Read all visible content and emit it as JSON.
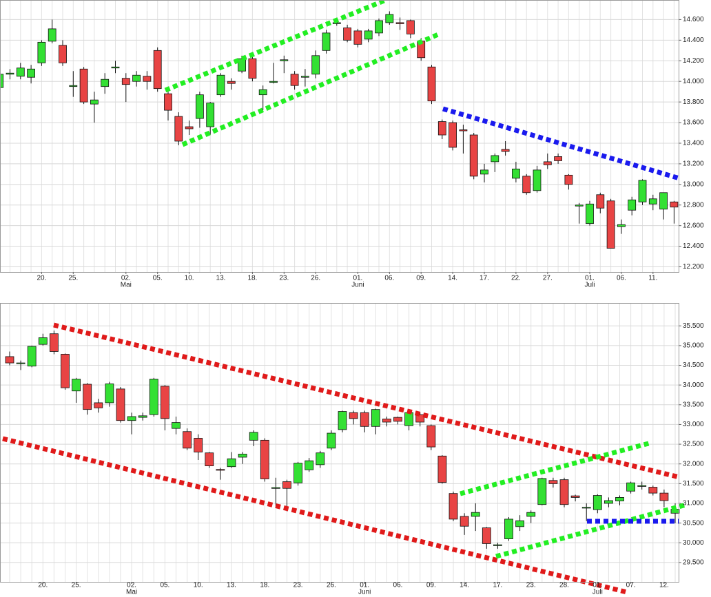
{
  "chart_data": [
    {
      "type": "candlestick",
      "up_color": "#33e033",
      "down_color": "#e84444",
      "grid": true,
      "categories": [
        null,
        null,
        null,
        null,
        "20.",
        null,
        null,
        "25.",
        null,
        null,
        null,
        null,
        "02.",
        null,
        null,
        "05.",
        null,
        null,
        "10.",
        null,
        null,
        "13.",
        null,
        null,
        "18.",
        null,
        null,
        "23.",
        null,
        null,
        "26.",
        null,
        null,
        null,
        "01.",
        null,
        null,
        "06.",
        null,
        null,
        "09.",
        null,
        null,
        "14.",
        null,
        null,
        "17.",
        null,
        null,
        "22.",
        null,
        null,
        "27.",
        null,
        null,
        null,
        "01.",
        null,
        null,
        "06.",
        null,
        null,
        "11.",
        null,
        null
      ],
      "months": [
        null,
        null,
        null,
        null,
        null,
        null,
        null,
        null,
        null,
        null,
        null,
        null,
        "Mai",
        null,
        null,
        null,
        null,
        null,
        null,
        null,
        null,
        null,
        null,
        null,
        null,
        null,
        null,
        null,
        null,
        null,
        null,
        null,
        null,
        null,
        "Juni",
        null,
        null,
        null,
        null,
        null,
        null,
        null,
        null,
        null,
        null,
        null,
        null,
        null,
        null,
        null,
        null,
        null,
        null,
        null,
        null,
        null,
        "Juli",
        null,
        null,
        null,
        null,
        null,
        null,
        null,
        null
      ],
      "open": [
        13.94,
        14.07,
        14.05,
        14.04,
        14.18,
        14.39,
        14.35,
        13.95,
        14.12,
        13.78,
        13.95,
        14.13,
        14.03,
        14.0,
        14.05,
        14.3,
        13.88,
        13.66,
        13.56,
        13.64,
        13.56,
        13.87,
        14.0,
        14.1,
        14.22,
        13.87,
        13.99,
        14.2,
        14.07,
        14.04,
        14.07,
        14.3,
        14.56,
        14.52,
        14.49,
        14.41,
        14.47,
        14.57,
        14.57,
        14.59,
        14.39,
        14.14,
        13.61,
        13.6,
        13.53,
        13.48,
        13.1,
        13.22,
        13.34,
        13.06,
        13.08,
        12.94,
        13.22,
        13.27,
        13.09,
        12.79,
        12.62,
        12.9,
        12.84,
        12.59,
        12.75,
        12.83,
        12.81,
        12.76,
        12.83
      ],
      "high": [
        14.15,
        14.12,
        14.18,
        14.16,
        14.4,
        14.6,
        14.4,
        14.1,
        14.14,
        13.9,
        14.08,
        14.2,
        14.08,
        14.1,
        14.1,
        14.33,
        13.92,
        13.7,
        13.62,
        13.9,
        13.8,
        14.08,
        14.03,
        14.25,
        14.24,
        13.96,
        14.18,
        14.25,
        14.1,
        14.12,
        14.3,
        14.5,
        14.6,
        14.55,
        14.51,
        14.51,
        14.61,
        14.68,
        14.62,
        14.6,
        14.42,
        14.16,
        13.63,
        13.62,
        13.58,
        13.5,
        13.2,
        13.3,
        13.42,
        13.22,
        13.1,
        13.18,
        13.3,
        13.3,
        13.1,
        12.82,
        12.84,
        12.92,
        12.86,
        12.66,
        12.88,
        13.05,
        12.9,
        12.92,
        12.84
      ],
      "low": [
        13.88,
        14.02,
        14.02,
        13.98,
        14.15,
        14.37,
        14.15,
        13.85,
        13.78,
        13.6,
        13.88,
        14.08,
        13.8,
        13.95,
        13.92,
        13.9,
        13.62,
        13.38,
        13.48,
        13.55,
        13.48,
        13.85,
        13.92,
        14.08,
        14.0,
        13.72,
        13.98,
        14.08,
        13.92,
        13.95,
        14.03,
        14.27,
        14.54,
        14.38,
        14.33,
        14.38,
        14.44,
        14.55,
        14.5,
        14.42,
        14.2,
        13.78,
        13.44,
        13.33,
        13.3,
        13.05,
        13.02,
        13.12,
        13.28,
        13.02,
        12.9,
        12.92,
        13.15,
        13.2,
        12.95,
        12.62,
        12.6,
        12.72,
        12.38,
        12.52,
        12.7,
        12.8,
        12.75,
        12.66,
        12.62
      ],
      "close": [
        14.07,
        14.08,
        14.13,
        14.12,
        14.38,
        14.51,
        14.18,
        13.96,
        13.8,
        13.82,
        14.02,
        14.14,
        13.97,
        14.06,
        14.0,
        13.93,
        13.72,
        13.42,
        13.54,
        13.87,
        13.79,
        14.06,
        13.98,
        14.22,
        14.03,
        13.92,
        14.0,
        14.21,
        13.96,
        14.05,
        14.25,
        14.47,
        14.57,
        14.4,
        14.36,
        14.49,
        14.59,
        14.65,
        14.56,
        14.46,
        14.23,
        13.81,
        13.48,
        13.36,
        13.52,
        13.08,
        13.14,
        13.28,
        13.32,
        13.15,
        12.92,
        13.14,
        13.19,
        13.23,
        13.0,
        12.8,
        12.81,
        12.77,
        12.38,
        12.61,
        12.85,
        13.04,
        12.86,
        12.92,
        12.78
      ],
      "ylim": [
        12.15,
        14.79
      ],
      "yticks": [
        {
          "value": 12.2,
          "label": "12.200"
        },
        {
          "value": 12.4,
          "label": "12.400"
        },
        {
          "value": 12.6,
          "label": "12.600"
        },
        {
          "value": 12.8,
          "label": "12.800"
        },
        {
          "value": 13.0,
          "label": "13.000"
        },
        {
          "value": 13.2,
          "label": "13.200"
        },
        {
          "value": 13.4,
          "label": "13.400"
        },
        {
          "value": 13.6,
          "label": "13.600"
        },
        {
          "value": 13.8,
          "label": "13.800"
        },
        {
          "value": 14.0,
          "label": "14.000"
        },
        {
          "value": 14.2,
          "label": "14.200"
        },
        {
          "value": 14.4,
          "label": "14.400"
        },
        {
          "value": 14.6,
          "label": "14.600"
        }
      ]
    },
    {
      "type": "candlestick",
      "up_color": "#33e033",
      "down_color": "#e84444",
      "grid": true,
      "categories": [
        null,
        null,
        null,
        "20.",
        null,
        null,
        "25.",
        null,
        null,
        null,
        null,
        "02.",
        null,
        null,
        "05.",
        null,
        null,
        "10.",
        null,
        null,
        "13.",
        null,
        null,
        "18.",
        null,
        null,
        "23.",
        null,
        null,
        "26.",
        null,
        null,
        "01.",
        null,
        null,
        "06.",
        null,
        null,
        "09.",
        null,
        null,
        "14.",
        null,
        null,
        "17.",
        null,
        null,
        "23.",
        null,
        null,
        "28.",
        null,
        null,
        "01.",
        null,
        null,
        "07.",
        null,
        null,
        "12.",
        null
      ],
      "months": [
        null,
        null,
        null,
        null,
        null,
        null,
        null,
        null,
        null,
        null,
        null,
        "Mai",
        null,
        null,
        null,
        null,
        null,
        null,
        null,
        null,
        null,
        null,
        null,
        null,
        null,
        null,
        null,
        null,
        null,
        null,
        null,
        null,
        "Juni",
        null,
        null,
        null,
        null,
        null,
        null,
        null,
        null,
        null,
        null,
        null,
        null,
        null,
        null,
        null,
        null,
        null,
        null,
        null,
        null,
        "Juli",
        null,
        null,
        null,
        null,
        null,
        null,
        null
      ],
      "open": [
        34.72,
        34.55,
        34.48,
        35.03,
        35.3,
        34.78,
        33.85,
        34.02,
        33.55,
        33.55,
        33.9,
        33.1,
        33.18,
        33.25,
        33.97,
        32.9,
        32.82,
        32.65,
        32.28,
        31.86,
        31.93,
        32.17,
        32.6,
        32.6,
        31.4,
        31.55,
        31.52,
        31.85,
        31.98,
        32.4,
        32.87,
        33.3,
        33.3,
        32.95,
        33.14,
        33.18,
        32.97,
        33.25,
        32.97,
        32.2,
        31.25,
        30.67,
        30.67,
        30.38,
        29.94,
        30.1,
        30.41,
        30.67,
        30.97,
        31.58,
        31.6,
        31.19,
        30.9,
        30.84,
        31.0,
        31.06,
        31.31,
        31.45,
        31.41,
        31.26,
        30.75
      ],
      "high": [
        34.85,
        34.62,
        35.0,
        35.3,
        35.38,
        34.8,
        34.18,
        34.05,
        33.65,
        34.08,
        33.95,
        33.3,
        33.3,
        34.18,
        34.0,
        33.2,
        32.9,
        32.75,
        32.3,
        31.9,
        32.3,
        32.3,
        32.85,
        32.65,
        31.65,
        31.6,
        32.05,
        32.15,
        32.33,
        32.85,
        33.35,
        33.35,
        33.35,
        33.4,
        33.2,
        33.2,
        33.35,
        33.3,
        33.0,
        32.22,
        31.3,
        30.75,
        31.0,
        30.4,
        30.0,
        30.65,
        30.7,
        30.82,
        31.65,
        31.65,
        31.65,
        31.22,
        31.0,
        31.23,
        31.15,
        31.2,
        31.55,
        31.55,
        31.45,
        31.35,
        31.0
      ],
      "low": [
        34.5,
        34.38,
        34.45,
        35.0,
        34.78,
        33.88,
        33.55,
        33.25,
        33.3,
        33.45,
        33.05,
        32.75,
        33.1,
        33.2,
        32.85,
        32.75,
        32.35,
        32.1,
        31.9,
        31.6,
        31.9,
        32.0,
        32.45,
        31.55,
        30.9,
        30.8,
        31.45,
        31.8,
        31.9,
        32.35,
        32.8,
        33.0,
        32.8,
        32.75,
        32.95,
        33.0,
        32.85,
        32.95,
        32.35,
        31.5,
        30.55,
        30.2,
        30.3,
        29.85,
        29.85,
        30.05,
        30.3,
        30.5,
        30.95,
        31.4,
        30.9,
        31.05,
        30.55,
        30.75,
        30.9,
        30.95,
        31.25,
        31.35,
        31.2,
        30.9,
        30.5
      ],
      "close": [
        34.56,
        34.56,
        34.98,
        35.2,
        34.85,
        33.93,
        34.15,
        33.38,
        33.42,
        34.03,
        33.1,
        33.2,
        33.22,
        34.15,
        33.15,
        33.05,
        32.4,
        32.3,
        31.95,
        31.85,
        32.13,
        32.25,
        32.8,
        31.62,
        31.4,
        31.38,
        32.02,
        32.08,
        32.28,
        32.78,
        33.33,
        33.15,
        32.95,
        33.38,
        33.06,
        33.08,
        33.3,
        33.06,
        32.43,
        31.53,
        30.6,
        30.42,
        30.77,
        29.98,
        29.95,
        30.6,
        30.56,
        30.77,
        31.63,
        31.5,
        30.97,
        31.15,
        30.9,
        31.2,
        31.07,
        31.15,
        31.52,
        31.45,
        31.26,
        31.07,
        30.85
      ],
      "ylim": [
        29.01,
        36.08
      ],
      "yticks": [
        {
          "value": 29.5,
          "label": "29.500"
        },
        {
          "value": 30.0,
          "label": "30.000"
        },
        {
          "value": 30.5,
          "label": "30.500"
        },
        {
          "value": 31.0,
          "label": "31.000"
        },
        {
          "value": 31.5,
          "label": "31.500"
        },
        {
          "value": 32.0,
          "label": "32.000"
        },
        {
          "value": 32.5,
          "label": "32.500"
        },
        {
          "value": 33.0,
          "label": "33.000"
        },
        {
          "value": 33.5,
          "label": "33.500"
        },
        {
          "value": 34.0,
          "label": "34.000"
        },
        {
          "value": 34.5,
          "label": "34.500"
        },
        {
          "value": 35.0,
          "label": "35.000"
        },
        {
          "value": 35.5,
          "label": "35.500"
        }
      ]
    }
  ]
}
